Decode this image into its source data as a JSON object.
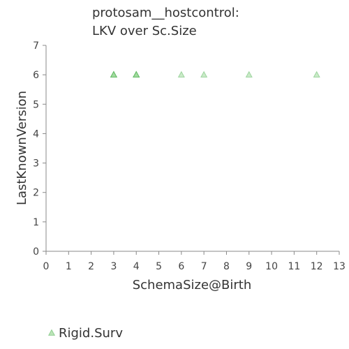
{
  "chart_data": {
    "type": "scatter",
    "title": [
      "protosam__hostcontrol:",
      "LKV over Sc.Size"
    ],
    "xlabel": "SchemaSize@Birth",
    "ylabel": "LastKnownVersion",
    "xlim": [
      0,
      13
    ],
    "ylim": [
      0,
      7
    ],
    "xticks": [
      "0",
      "1",
      "2",
      "3",
      "4",
      "5",
      "6",
      "7",
      "8",
      "9",
      "10",
      "11",
      "12",
      "13"
    ],
    "yticks": [
      "0",
      "1",
      "2",
      "3",
      "4",
      "5",
      "6",
      "7"
    ],
    "grid": false,
    "legend_position": "bottom-left",
    "series": [
      {
        "name": "Rigid.Surv",
        "marker": "triangle",
        "color": "#9fd89a",
        "stroke": "#4caf50",
        "points": [
          {
            "x": 3,
            "y": 6,
            "count": 4
          },
          {
            "x": 4,
            "y": 6,
            "count": 4
          },
          {
            "x": 6,
            "y": 6,
            "count": 1
          },
          {
            "x": 7,
            "y": 6,
            "count": 1
          },
          {
            "x": 9,
            "y": 6,
            "count": 1
          },
          {
            "x": 12,
            "y": 6,
            "count": 1
          }
        ]
      }
    ]
  }
}
